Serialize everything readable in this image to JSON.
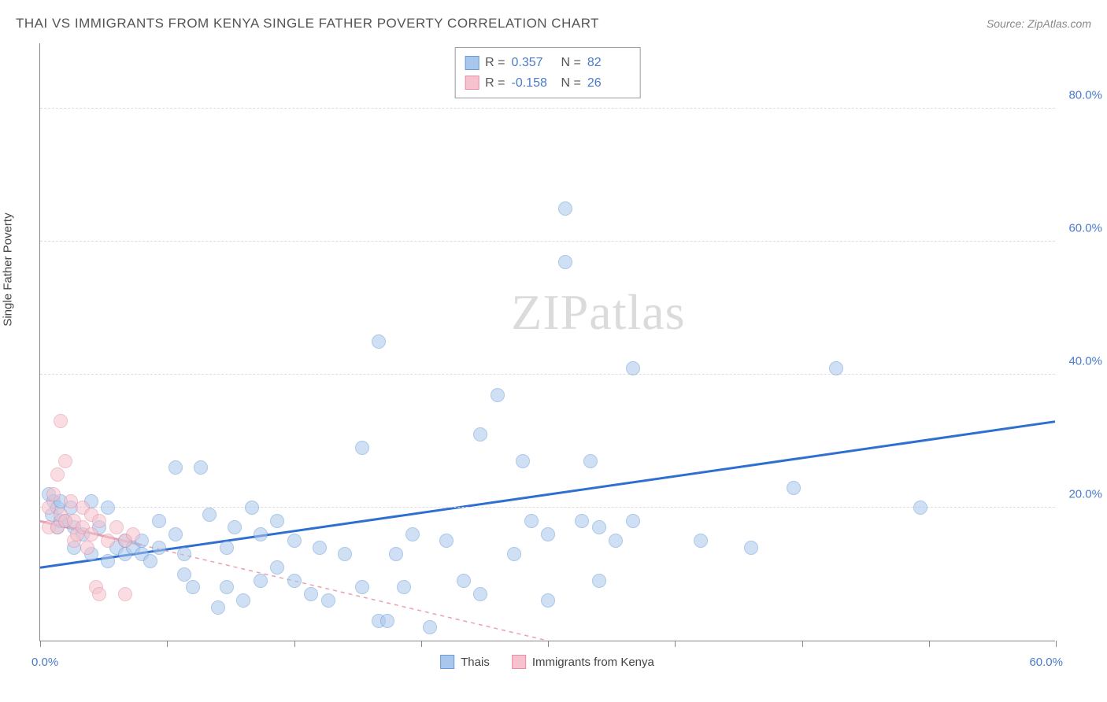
{
  "title": "THAI VS IMMIGRANTS FROM KENYA SINGLE FATHER POVERTY CORRELATION CHART",
  "source_label": "Source: ",
  "source_value": "ZipAtlas.com",
  "watermark": "ZIPatlas",
  "chart": {
    "type": "scatter",
    "y_axis_title": "Single Father Poverty",
    "xlim": [
      0,
      60
    ],
    "ylim": [
      0,
      90
    ],
    "x_tick_positions": [
      0,
      7.5,
      15,
      22.5,
      30,
      37.5,
      45,
      52.5,
      60
    ],
    "x_labels": {
      "min": "0.0%",
      "max": "60.0%"
    },
    "y_gridlines": [
      {
        "v": 20,
        "label": "20.0%"
      },
      {
        "v": 40,
        "label": "40.0%"
      },
      {
        "v": 60,
        "label": "60.0%"
      },
      {
        "v": 80,
        "label": "80.0%"
      }
    ],
    "background_color": "#ffffff",
    "grid_color": "#dddddd",
    "axis_color": "#888888",
    "label_color": "#4a7bc8",
    "point_radius": 9,
    "point_opacity": 0.55,
    "series": [
      {
        "name": "Thais",
        "color_fill": "#a9c7ec",
        "color_stroke": "#6a9bd8",
        "r_label": "R =",
        "r_value": "0.357",
        "n_label": "N =",
        "n_value": "82",
        "trend": {
          "x1": 0,
          "y1": 11,
          "x2": 60,
          "y2": 33,
          "stroke": "#2f6fd0",
          "width": 3,
          "dash": "none"
        },
        "points": [
          [
            0.5,
            22
          ],
          [
            0.7,
            19
          ],
          [
            0.8,
            21
          ],
          [
            1.0,
            20
          ],
          [
            1.0,
            17
          ],
          [
            1.2,
            18
          ],
          [
            1.2,
            21
          ],
          [
            1.5,
            18
          ],
          [
            1.8,
            20
          ],
          [
            2.0,
            14
          ],
          [
            2.0,
            17
          ],
          [
            2.5,
            16
          ],
          [
            3.0,
            21
          ],
          [
            3.0,
            13
          ],
          [
            3.5,
            17
          ],
          [
            4.0,
            20
          ],
          [
            4.0,
            12
          ],
          [
            4.5,
            14
          ],
          [
            5.0,
            15
          ],
          [
            5.0,
            13
          ],
          [
            5.5,
            14
          ],
          [
            6.0,
            15
          ],
          [
            6.0,
            13
          ],
          [
            6.5,
            12
          ],
          [
            7.0,
            18
          ],
          [
            7.0,
            14
          ],
          [
            8.0,
            26
          ],
          [
            8.0,
            16
          ],
          [
            8.5,
            10
          ],
          [
            9.0,
            8
          ],
          [
            9.5,
            26
          ],
          [
            10.0,
            19
          ],
          [
            10.5,
            5
          ],
          [
            11.0,
            14
          ],
          [
            11.0,
            8
          ],
          [
            11.5,
            17
          ],
          [
            12.0,
            6
          ],
          [
            13.0,
            16
          ],
          [
            13.0,
            9
          ],
          [
            14.0,
            18
          ],
          [
            14.0,
            11
          ],
          [
            15.0,
            9
          ],
          [
            15.0,
            15
          ],
          [
            16.0,
            7
          ],
          [
            16.5,
            14
          ],
          [
            17.0,
            6
          ],
          [
            18.0,
            13
          ],
          [
            19.0,
            29
          ],
          [
            19.0,
            8
          ],
          [
            20.0,
            45
          ],
          [
            20.0,
            3
          ],
          [
            20.5,
            3
          ],
          [
            21.0,
            13
          ],
          [
            21.5,
            8
          ],
          [
            22.0,
            16
          ],
          [
            23.0,
            2
          ],
          [
            24.0,
            15
          ],
          [
            25.0,
            9
          ],
          [
            26.0,
            31
          ],
          [
            26.0,
            7
          ],
          [
            27.0,
            37
          ],
          [
            28.0,
            13
          ],
          [
            28.5,
            27
          ],
          [
            29.0,
            18
          ],
          [
            30.0,
            6
          ],
          [
            30.0,
            16
          ],
          [
            31.0,
            57
          ],
          [
            31.0,
            65
          ],
          [
            32.0,
            18
          ],
          [
            32.5,
            27
          ],
          [
            33.0,
            9
          ],
          [
            33.0,
            17
          ],
          [
            34.0,
            15
          ],
          [
            35.0,
            18
          ],
          [
            35.0,
            41
          ],
          [
            39.0,
            15
          ],
          [
            42.0,
            14
          ],
          [
            44.5,
            23
          ],
          [
            47.0,
            41
          ],
          [
            52.0,
            20
          ],
          [
            8.5,
            13
          ],
          [
            12.5,
            20
          ]
        ]
      },
      {
        "name": "Immigrants from Kenya",
        "color_fill": "#f5c2cd",
        "color_stroke": "#e78fa5",
        "r_label": "R =",
        "r_value": "-0.158",
        "n_label": "N =",
        "n_value": "26",
        "trend": {
          "x1": 0,
          "y1": 18,
          "x2": 30,
          "y2": 0,
          "stroke": "#e9a0b0",
          "width": 1.5,
          "dash": "5,5",
          "solid_until_x": 6
        },
        "points": [
          [
            0.5,
            17
          ],
          [
            0.5,
            20
          ],
          [
            0.8,
            22
          ],
          [
            1.0,
            25
          ],
          [
            1.0,
            17
          ],
          [
            1.2,
            33
          ],
          [
            1.2,
            19
          ],
          [
            1.5,
            27
          ],
          [
            1.5,
            18
          ],
          [
            1.8,
            21
          ],
          [
            2.0,
            15
          ],
          [
            2.0,
            18
          ],
          [
            2.2,
            16
          ],
          [
            2.5,
            20
          ],
          [
            2.5,
            17
          ],
          [
            2.8,
            14
          ],
          [
            3.0,
            19
          ],
          [
            3.0,
            16
          ],
          [
            3.3,
            8
          ],
          [
            3.5,
            18
          ],
          [
            3.5,
            7
          ],
          [
            4.0,
            15
          ],
          [
            4.5,
            17
          ],
          [
            5.0,
            7
          ],
          [
            5.0,
            15
          ],
          [
            5.5,
            16
          ]
        ]
      }
    ],
    "bottom_legend": [
      {
        "swatch_fill": "#a9c7ec",
        "swatch_stroke": "#6a9bd8",
        "label": "Thais"
      },
      {
        "swatch_fill": "#f5c2cd",
        "swatch_stroke": "#e78fa5",
        "label": "Immigrants from Kenya"
      }
    ]
  }
}
